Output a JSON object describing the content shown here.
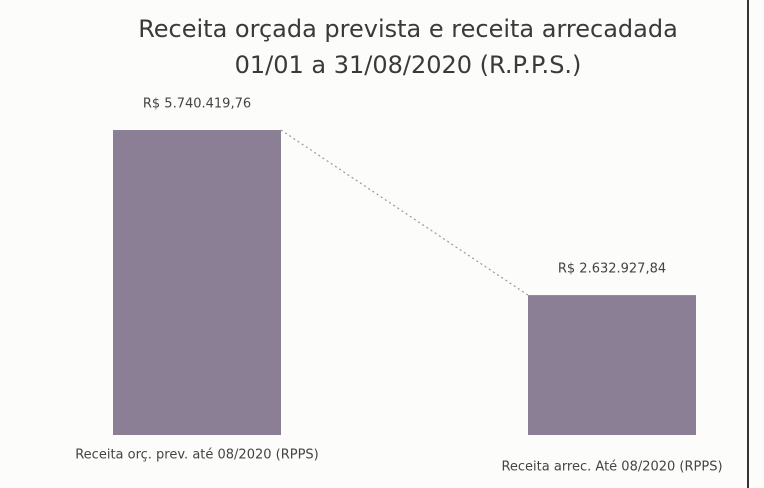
{
  "chart_data": {
    "type": "bar",
    "title": "Receita orçada prevista e receita arrecadada",
    "subtitle": "01/01 a 31/08/2020 (R.P.P.S.)",
    "categories": [
      "Receita orç. prev. até 08/2020 (RPPS)",
      "Receita arrec. Até 08/2020 (RPPS)"
    ],
    "values": [
      5740419.76,
      2632927.84
    ],
    "value_labels": [
      "R$ 5.740.419,76",
      "R$ 2.632.927,84"
    ],
    "color": "#8a7f94"
  }
}
